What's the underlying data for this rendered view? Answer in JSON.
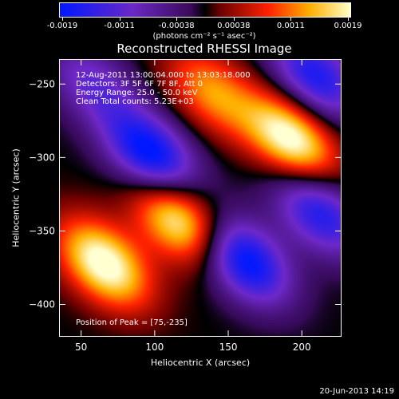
{
  "colorbar": {
    "ticks": [
      "-0.0019",
      "-0.0011",
      "-0.00038",
      "0.00038",
      "0.0011",
      "0.0019"
    ],
    "units": "(photons cm⁻² s⁻¹ asec⁻²)"
  },
  "chart_data": {
    "type": "heatmap",
    "title": "Reconstructed RHESSI Image",
    "xlabel": "Heliocentric X (arcsec)",
    "ylabel": "Heliocentric Y (arcsec)",
    "xlim": [
      35,
      227
    ],
    "ylim": [
      -422,
      -233
    ],
    "xticks": [
      50,
      100,
      150,
      200
    ],
    "yticks": [
      -250,
      -300,
      -350,
      -400
    ],
    "zlim": [
      -0.0019,
      0.0019
    ],
    "peak": [
      75,
      -235
    ],
    "annotations": {
      "line1": "12-Aug-2011 13:00:04.000 to 13:03:18.000",
      "line2": "Detectors: 3F 5F 6F 7F 8F, Att 0",
      "line3": "Energy Range: 25.0 - 50.0 keV",
      "line4": "Clean    Total counts: 5.23E+03",
      "peak_text": "Position of Peak = [75,-235]"
    }
  },
  "footer": {
    "timestamp": "20-Jun-2013 14:19"
  }
}
